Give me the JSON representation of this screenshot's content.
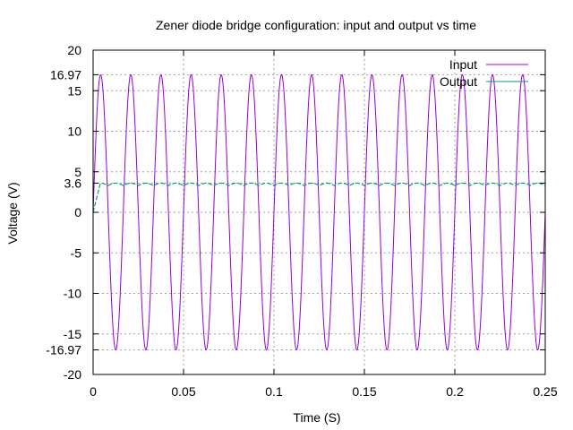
{
  "chart_data": {
    "type": "line",
    "title": "Zener diode bridge configuration: input and output vs time",
    "xlabel": "Time (S)",
    "ylabel": "Voltage (V)",
    "xlim": [
      0,
      0.25
    ],
    "ylim": [
      -20,
      20
    ],
    "x_ticks": [
      {
        "value": 0,
        "label": "0"
      },
      {
        "value": 0.05,
        "label": "0.05"
      },
      {
        "value": 0.1,
        "label": "0.1"
      },
      {
        "value": 0.15,
        "label": "0.15"
      },
      {
        "value": 0.2,
        "label": "0.2"
      },
      {
        "value": 0.25,
        "label": "0.25"
      }
    ],
    "y_ticks": [
      {
        "value": 20,
        "label": "20"
      },
      {
        "value": 16.97,
        "label": "16.97"
      },
      {
        "value": 15,
        "label": "15"
      },
      {
        "value": 10,
        "label": "10"
      },
      {
        "value": 5,
        "label": "5"
      },
      {
        "value": 3.6,
        "label": "3.6"
      },
      {
        "value": 0,
        "label": "0"
      },
      {
        "value": -5,
        "label": "-5"
      },
      {
        "value": -10,
        "label": "-10"
      },
      {
        "value": -15,
        "label": "-15"
      },
      {
        "value": -16.97,
        "label": "-16.97"
      },
      {
        "value": -20,
        "label": "-20"
      }
    ],
    "grid": true,
    "legend": "top-right",
    "series": [
      {
        "name": "Input",
        "color": "#9400d3",
        "amplitude": 16.97,
        "frequency_hz": 60,
        "waveform": "sine"
      },
      {
        "name": "Output",
        "color": "#009e73",
        "level": 3.6,
        "ripple_peak": 3.6,
        "ripple_trough": 3.3,
        "rise_end_time": 0.004,
        "waveform": "regulated-dc-with-ripple"
      }
    ]
  }
}
